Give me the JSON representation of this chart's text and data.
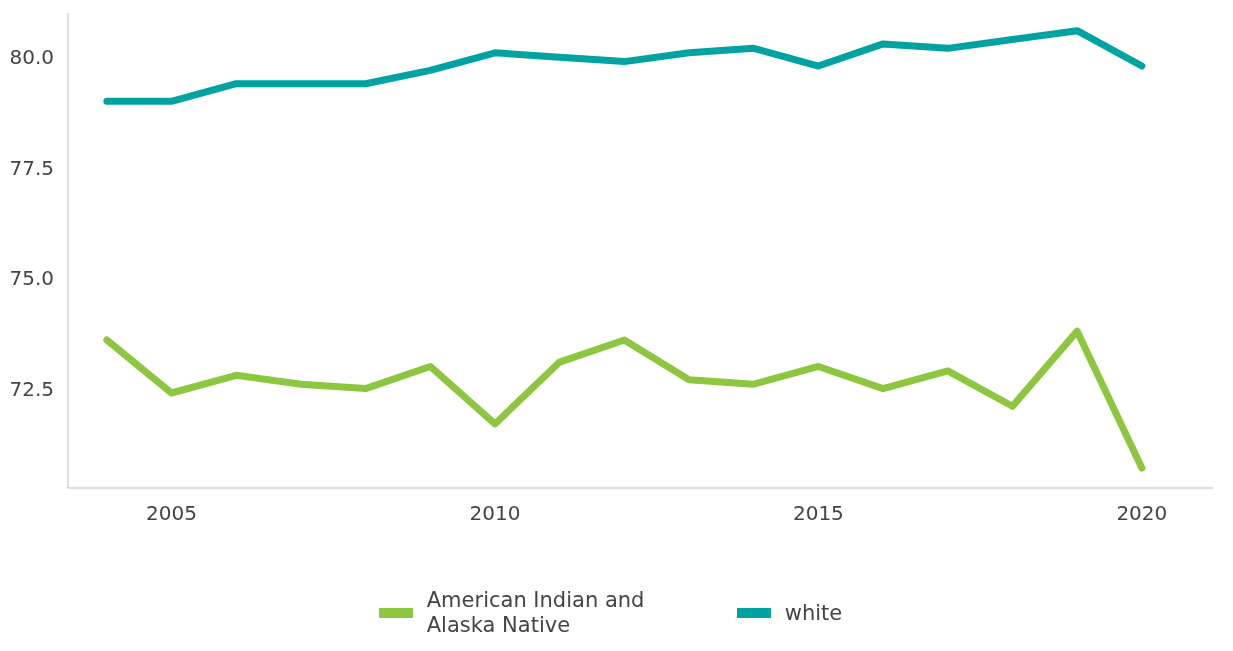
{
  "chart_data": {
    "type": "line",
    "x": [
      2004,
      2005,
      2006,
      2007,
      2008,
      2009,
      2010,
      2011,
      2012,
      2013,
      2014,
      2015,
      2016,
      2017,
      2018,
      2019,
      2020
    ],
    "series": [
      {
        "name": "American Indian and Alaska Native",
        "color": "#8dc63f",
        "values": [
          73.6,
          72.4,
          72.8,
          72.6,
          72.5,
          73.0,
          71.7,
          73.1,
          73.6,
          72.7,
          72.6,
          73.0,
          72.5,
          72.9,
          72.1,
          73.8,
          70.7
        ]
      },
      {
        "name": "white",
        "color": "#00a3a1",
        "values": [
          79.0,
          79.0,
          79.4,
          79.4,
          79.4,
          79.7,
          80.1,
          80.0,
          79.9,
          80.1,
          80.2,
          79.8,
          80.3,
          80.2,
          80.4,
          80.6,
          79.8
        ]
      }
    ],
    "xlim": [
      2003.4,
      2021.1
    ],
    "xticks": [
      2005,
      2010,
      2015,
      2020
    ],
    "ylim": [
      70.25,
      81.0
    ],
    "yticks": [
      72.5,
      {
        "value": 75,
        "label": "75.0"
      },
      77.5,
      {
        "value": 80,
        "label": "80.0"
      }
    ],
    "grid": false,
    "legend": "bottom",
    "marker": "none",
    "line_style": "solid"
  }
}
